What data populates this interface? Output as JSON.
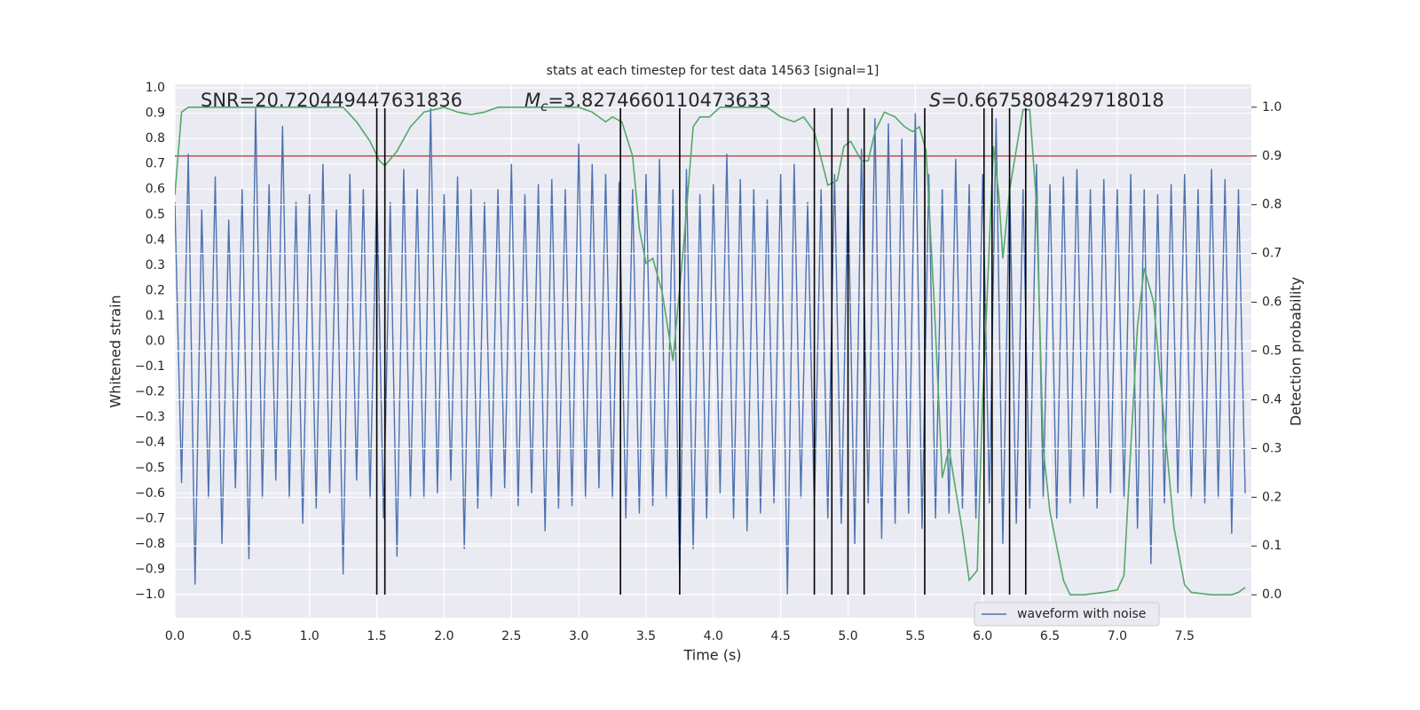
{
  "chart_data": {
    "type": "line",
    "title": "stats at each timestep for test data 14563 [signal=1]",
    "x_label": "Time (s)",
    "y_label": "Whitened strain",
    "y2_label": "Detection probability",
    "xlim": [
      0,
      7.996
    ],
    "ylim": [
      -1.091,
      1.014
    ],
    "y2lim": [
      -0.047,
      1.047
    ],
    "xticks": [
      {
        "value": 0,
        "label": "0.0"
      },
      {
        "value": 0.5,
        "label": "0.5"
      },
      {
        "value": 1,
        "label": "1.0"
      },
      {
        "value": 1.5,
        "label": "1.5"
      },
      {
        "value": 2,
        "label": "2.0"
      },
      {
        "value": 2.5,
        "label": "2.5"
      },
      {
        "value": 3,
        "label": "3.0"
      },
      {
        "value": 3.5,
        "label": "3.5"
      },
      {
        "value": 4,
        "label": "4.0"
      },
      {
        "value": 4.5,
        "label": "4.5"
      },
      {
        "value": 5,
        "label": "5.0"
      },
      {
        "value": 5.5,
        "label": "5.5"
      },
      {
        "value": 6,
        "label": "6.0"
      },
      {
        "value": 6.5,
        "label": "6.5"
      },
      {
        "value": 7,
        "label": "7.0"
      },
      {
        "value": 7.5,
        "label": "7.5"
      }
    ],
    "yticks": [
      {
        "value": 1,
        "label": "1.0"
      },
      {
        "value": 0.9,
        "label": "0.9"
      },
      {
        "value": 0.8,
        "label": "0.8"
      },
      {
        "value": 0.7,
        "label": "0.7"
      },
      {
        "value": 0.6,
        "label": "0.6"
      },
      {
        "value": 0.5,
        "label": "0.5"
      },
      {
        "value": 0.4,
        "label": "0.4"
      },
      {
        "value": 0.3,
        "label": "0.3"
      },
      {
        "value": 0.2,
        "label": "0.2"
      },
      {
        "value": 0.1,
        "label": "0.1"
      },
      {
        "value": 0,
        "label": "0.0"
      },
      {
        "value": -0.1,
        "label": "−0.1"
      },
      {
        "value": -0.2,
        "label": "−0.2"
      },
      {
        "value": -0.3,
        "label": "−0.3"
      },
      {
        "value": -0.4,
        "label": "−0.4"
      },
      {
        "value": -0.5,
        "label": "−0.5"
      },
      {
        "value": -0.6,
        "label": "−0.6"
      },
      {
        "value": -0.7,
        "label": "−0.7"
      },
      {
        "value": -0.8,
        "label": "−0.8"
      },
      {
        "value": -0.9,
        "label": "−0.9"
      },
      {
        "value": -1,
        "label": "−1.0"
      }
    ],
    "y2ticks": [
      {
        "value": 1,
        "label": "1.0"
      },
      {
        "value": 0.9,
        "label": "0.9"
      },
      {
        "value": 0.8,
        "label": "0.8"
      },
      {
        "value": 0.7,
        "label": "0.7"
      },
      {
        "value": 0.6,
        "label": "0.6"
      },
      {
        "value": 0.5,
        "label": "0.5"
      },
      {
        "value": 0.4,
        "label": "0.4"
      },
      {
        "value": 0.3,
        "label": "0.3"
      },
      {
        "value": 0.2,
        "label": "0.2"
      },
      {
        "value": 0.1,
        "label": "0.1"
      },
      {
        "value": 0,
        "label": "0.0"
      }
    ],
    "grid": true,
    "legend": "lower right",
    "series": [
      {
        "name": "waveform with noise",
        "color": "#4c72b0",
        "x": [
          0,
          0.05,
          0.1,
          0.15,
          0.2,
          0.25,
          0.3,
          0.35,
          0.4,
          0.45,
          0.5,
          0.55,
          0.6,
          0.65,
          0.7,
          0.75,
          0.8,
          0.85,
          0.9,
          0.95,
          1,
          1.05,
          1.1,
          1.15,
          1.2,
          1.25,
          1.3,
          1.35,
          1.4,
          1.45,
          1.5,
          1.55,
          1.6,
          1.65,
          1.7,
          1.75,
          1.8,
          1.85,
          1.9,
          1.95,
          2,
          2.05,
          2.1,
          2.15,
          2.2,
          2.25,
          2.3,
          2.35,
          2.4,
          2.45,
          2.5,
          2.55,
          2.6,
          2.65,
          2.7,
          2.75,
          2.8,
          2.85,
          2.9,
          2.95,
          3,
          3.05,
          3.1,
          3.15,
          3.2,
          3.25,
          3.3,
          3.35,
          3.4,
          3.45,
          3.5,
          3.55,
          3.6,
          3.65,
          3.7,
          3.75,
          3.8,
          3.85,
          3.9,
          3.95,
          4,
          4.05,
          4.1,
          4.15,
          4.2,
          4.25,
          4.3,
          4.35,
          4.4,
          4.45,
          4.5,
          4.55,
          4.6,
          4.65,
          4.7,
          4.75,
          4.8,
          4.85,
          4.9,
          4.95,
          5,
          5.05,
          5.1,
          5.15,
          5.2,
          5.25,
          5.3,
          5.35,
          5.4,
          5.45,
          5.5,
          5.55,
          5.6,
          5.65,
          5.7,
          5.75,
          5.8,
          5.85,
          5.9,
          5.95,
          6,
          6.05,
          6.1,
          6.15,
          6.2,
          6.25,
          6.3,
          6.35,
          6.4,
          6.45,
          6.5,
          6.55,
          6.6,
          6.65,
          6.7,
          6.75,
          6.8,
          6.85,
          6.9,
          6.95,
          7,
          7.05,
          7.1,
          7.15,
          7.2,
          7.25,
          7.3,
          7.35,
          7.4,
          7.45,
          7.5,
          7.55,
          7.6,
          7.65,
          7.7,
          7.75,
          7.8,
          7.85,
          7.9,
          7.95
        ],
        "values": [
          0.55,
          -0.56,
          0.74,
          -0.96,
          0.52,
          -0.62,
          0.65,
          -0.8,
          0.48,
          -0.58,
          0.6,
          -0.86,
          0.92,
          -0.62,
          0.62,
          -0.55,
          0.85,
          -0.62,
          0.55,
          -0.72,
          0.58,
          -0.66,
          0.7,
          -0.6,
          0.52,
          -0.92,
          0.66,
          -0.55,
          0.6,
          -0.62,
          0.62,
          -0.7,
          0.55,
          -0.85,
          0.68,
          -0.62,
          0.6,
          -0.62,
          0.92,
          -0.6,
          0.58,
          -0.55,
          0.65,
          -0.82,
          0.6,
          -0.66,
          0.55,
          -0.62,
          0.6,
          -0.58,
          0.7,
          -0.65,
          0.58,
          -0.6,
          0.62,
          -0.75,
          0.64,
          -0.66,
          0.6,
          -0.65,
          0.78,
          -0.62,
          0.7,
          -0.58,
          0.66,
          -0.62,
          0.63,
          -0.7,
          0.6,
          -0.68,
          0.66,
          -0.65,
          0.72,
          -0.62,
          0.6,
          -0.93,
          0.68,
          -0.82,
          0.58,
          -0.7,
          0.62,
          -0.6,
          0.74,
          -0.7,
          0.64,
          -0.75,
          0.6,
          -0.68,
          0.56,
          -0.64,
          0.66,
          -1.0,
          0.7,
          -0.62,
          0.55,
          -0.66,
          0.6,
          -0.7,
          0.66,
          -0.72,
          0.62,
          -0.8,
          0.76,
          -0.64,
          0.88,
          -0.78,
          0.86,
          -0.72,
          0.8,
          -0.68,
          0.9,
          -0.74,
          0.66,
          -0.7,
          0.6,
          -0.68,
          0.72,
          -0.66,
          0.62,
          -0.7,
          0.66,
          -0.64,
          0.88,
          -0.8,
          0.64,
          -0.72,
          0.6,
          -0.66,
          0.7,
          -0.62,
          0.62,
          -0.7,
          0.65,
          -0.64,
          0.68,
          -0.62,
          0.6,
          -0.66,
          0.64,
          -0.6,
          0.6,
          -0.62,
          0.66,
          -0.74,
          0.6,
          -0.88,
          0.58,
          -0.64,
          0.62,
          -0.6,
          0.66,
          -0.62,
          0.6,
          -0.64,
          0.68,
          -0.62,
          0.64,
          -0.76,
          0.6,
          -0.6
        ]
      },
      {
        "color": "#55a868",
        "axis": "y2",
        "x": [
          0,
          0.05,
          0.1,
          0.5,
          1,
          1.25,
          1.35,
          1.45,
          1.52,
          1.56,
          1.65,
          1.75,
          1.85,
          2,
          2.1,
          2.2,
          2.3,
          2.4,
          2.9,
          3,
          3.1,
          3.2,
          3.25,
          3.32,
          3.4,
          3.45,
          3.5,
          3.55,
          3.62,
          3.7,
          3.78,
          3.85,
          3.9,
          3.97,
          4.05,
          4.4,
          4.5,
          4.6,
          4.67,
          4.75,
          4.85,
          4.92,
          4.97,
          5.02,
          5.1,
          5.15,
          5.2,
          5.27,
          5.35,
          5.42,
          5.48,
          5.53,
          5.58,
          5.64,
          5.7,
          5.75,
          5.85,
          5.9,
          5.96,
          6,
          6.05,
          6.08,
          6.12,
          6.15,
          6.2,
          6.26,
          6.3,
          6.35,
          6.4,
          6.45,
          6.5,
          6.55,
          6.6,
          6.65,
          6.75,
          6.9,
          7,
          7.05,
          7.1,
          7.15,
          7.2,
          7.27,
          7.35,
          7.42,
          7.5,
          7.55,
          7.7,
          7.85,
          7.9,
          7.95
        ],
        "values": [
          0.82,
          0.99,
          1.0,
          1.0,
          1.0,
          1.0,
          0.97,
          0.93,
          0.89,
          0.88,
          0.91,
          0.96,
          0.99,
          1.0,
          0.99,
          0.985,
          0.99,
          1.0,
          1.0,
          1.0,
          0.99,
          0.97,
          0.98,
          0.97,
          0.9,
          0.75,
          0.68,
          0.69,
          0.62,
          0.48,
          0.72,
          0.96,
          0.98,
          0.98,
          1.0,
          1.0,
          0.98,
          0.97,
          0.98,
          0.95,
          0.84,
          0.85,
          0.92,
          0.93,
          0.89,
          0.89,
          0.95,
          0.99,
          0.98,
          0.96,
          0.95,
          0.96,
          0.91,
          0.6,
          0.24,
          0.3,
          0.13,
          0.03,
          0.05,
          0.4,
          0.72,
          0.92,
          0.82,
          0.69,
          0.83,
          0.93,
          0.995,
          0.995,
          0.8,
          0.3,
          0.17,
          0.1,
          0.03,
          0.0,
          0.0,
          0.005,
          0.01,
          0.04,
          0.3,
          0.55,
          0.67,
          0.6,
          0.35,
          0.14,
          0.02,
          0.005,
          0.0,
          0.0,
          0.005,
          0.015
        ]
      }
    ],
    "threshold": {
      "value": 0.9,
      "axis": "y2",
      "color": "#c44e52"
    },
    "vlines": {
      "x": [
        1.5,
        1.56,
        3.31,
        3.75,
        4.75,
        4.88,
        5.0,
        5.12,
        5.57,
        6.01,
        6.07,
        6.2,
        6.32
      ],
      "ymin": -1.0,
      "ymax": 0.92,
      "color": "#000000"
    },
    "annotations": [
      {
        "text": "SNR=20.720449447631836"
      },
      {
        "symbol": "M",
        "subscript": "c",
        "text": "=3.8274660110473633"
      },
      {
        "symbol": "S",
        "text": "=0.6675808429718018"
      }
    ]
  }
}
